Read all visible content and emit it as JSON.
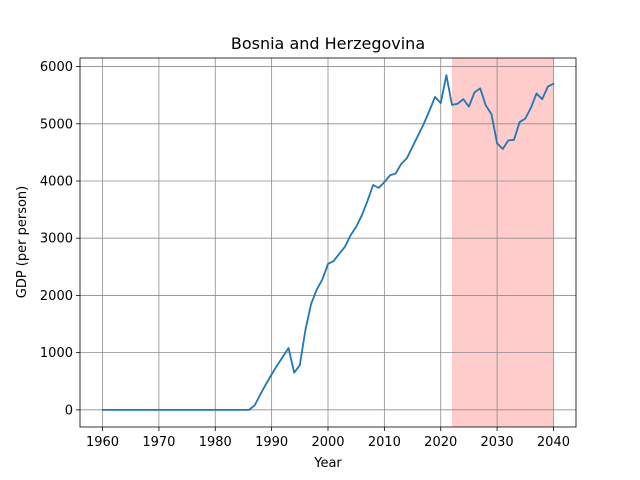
{
  "chart_data": {
    "type": "line",
    "title": "Bosnia and Herzegovina",
    "xlabel": "Year",
    "ylabel": "GDP (per person)",
    "xlim": [
      1956,
      2044
    ],
    "ylim": [
      -300,
      6150
    ],
    "xticks": [
      1960,
      1970,
      1980,
      1990,
      2000,
      2010,
      2020,
      2030,
      2040
    ],
    "yticks": [
      0,
      1000,
      2000,
      3000,
      4000,
      5000,
      6000
    ],
    "grid": true,
    "line_color": "#1f77b4",
    "highlight": {
      "x_start": 2022,
      "x_end": 2040,
      "color": "#ffcccc"
    },
    "series": [
      {
        "x": [
          1960,
          1961,
          1962,
          1963,
          1964,
          1965,
          1966,
          1967,
          1968,
          1969,
          1970,
          1971,
          1972,
          1973,
          1974,
          1975,
          1976,
          1977,
          1978,
          1979,
          1980,
          1981,
          1982,
          1983,
          1984,
          1985,
          1986,
          1987,
          1988,
          1989,
          1990,
          1991,
          1992,
          1993,
          1994,
          1995,
          1996,
          1997,
          1998,
          1999,
          2000,
          2001,
          2002,
          2003,
          2004,
          2005,
          2006,
          2007,
          2008,
          2009,
          2010,
          2011,
          2012,
          2013,
          2014,
          2015,
          2016,
          2017,
          2018,
          2019,
          2020,
          2021,
          2022,
          2023,
          2024,
          2025,
          2026,
          2027,
          2028,
          2029,
          2030,
          2031,
          2032,
          2033,
          2034,
          2035,
          2036,
          2037,
          2038,
          2039,
          2040
        ],
        "y": [
          0,
          0,
          0,
          0,
          0,
          0,
          0,
          0,
          0,
          0,
          0,
          0,
          0,
          0,
          0,
          0,
          0,
          0,
          0,
          0,
          0,
          0,
          0,
          0,
          0,
          0,
          0,
          80,
          270,
          450,
          620,
          780,
          930,
          1080,
          650,
          780,
          1400,
          1850,
          2100,
          2280,
          2550,
          2600,
          2730,
          2850,
          3050,
          3200,
          3400,
          3650,
          3930,
          3880,
          3980,
          4100,
          4130,
          4300,
          4400,
          4600,
          4800,
          5000,
          5230,
          5470,
          5360,
          5850,
          5330,
          5350,
          5430,
          5300,
          5550,
          5620,
          5320,
          5170,
          4660,
          4560,
          4710,
          4720,
          5030,
          5090,
          5280,
          5530,
          5430,
          5650,
          5700
        ]
      }
    ]
  }
}
